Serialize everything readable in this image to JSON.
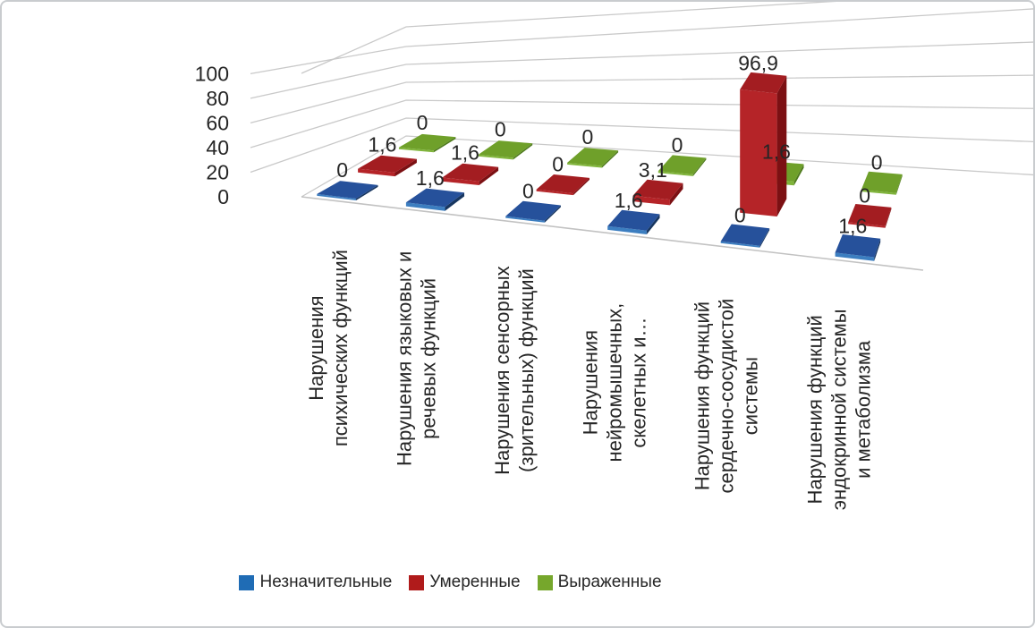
{
  "chart_data": {
    "type": "bar",
    "projection": "3d",
    "title": "",
    "grid": true,
    "legend_position": "bottom",
    "decimal_separator": ",",
    "yticks": [
      0,
      20,
      40,
      60,
      80,
      100
    ],
    "ylim": [
      0,
      100
    ],
    "text_color": "#262626",
    "gridline_color": "#c9c9c9",
    "axis_line_color": "#c2c2c2",
    "categories": [
      "Нарушения психических функций",
      "Нарушения языковых и речевых функций",
      "Нарушения сенсорных (зрительных) функций",
      "Нарушения нейромышечных, скелетных и…",
      "Нарушения функций сердечно-сосудистой системы",
      "Нарушения функций эндокринной системы и метаболизма"
    ],
    "category_tick_lines": [
      [
        "Нарушения",
        "психических функций"
      ],
      [
        "Нарушения языковых и",
        "речевых функций"
      ],
      [
        "Нарушения сенсорных",
        "(зрительных) функций"
      ],
      [
        "Нарушения",
        "нейромышечных,",
        "скелетных и…"
      ],
      [
        "Нарушения функций",
        "сердечно-сосудистой",
        "системы"
      ],
      [
        "Нарушения функций",
        "эндокринной системы",
        "и метаболизма"
      ]
    ],
    "series": [
      {
        "name": "Незначительные",
        "legend_color": "#1F6CB5",
        "top_color": "#26519B",
        "front_color": "#3C7EC0",
        "side_color": "#173660",
        "values": [
          0,
          1.6,
          0,
          1.6,
          0,
          1.6
        ]
      },
      {
        "name": "Умеренные",
        "legend_color": "#B01B1B",
        "top_color": "#A31D21",
        "front_color": "#B52428",
        "side_color": "#7C1013",
        "values": [
          1.6,
          1.6,
          0,
          3.1,
          96.9,
          0
        ]
      },
      {
        "name": "Выраженные",
        "legend_color": "#76A72C",
        "top_color": "#6FA02A",
        "front_color": "#7FB43A",
        "side_color": "#4E7A1D",
        "values": [
          0,
          0,
          0,
          0,
          1.6,
          0
        ]
      }
    ]
  },
  "frame": {
    "background": "#ffffff",
    "border_color": "#c9cccf"
  }
}
